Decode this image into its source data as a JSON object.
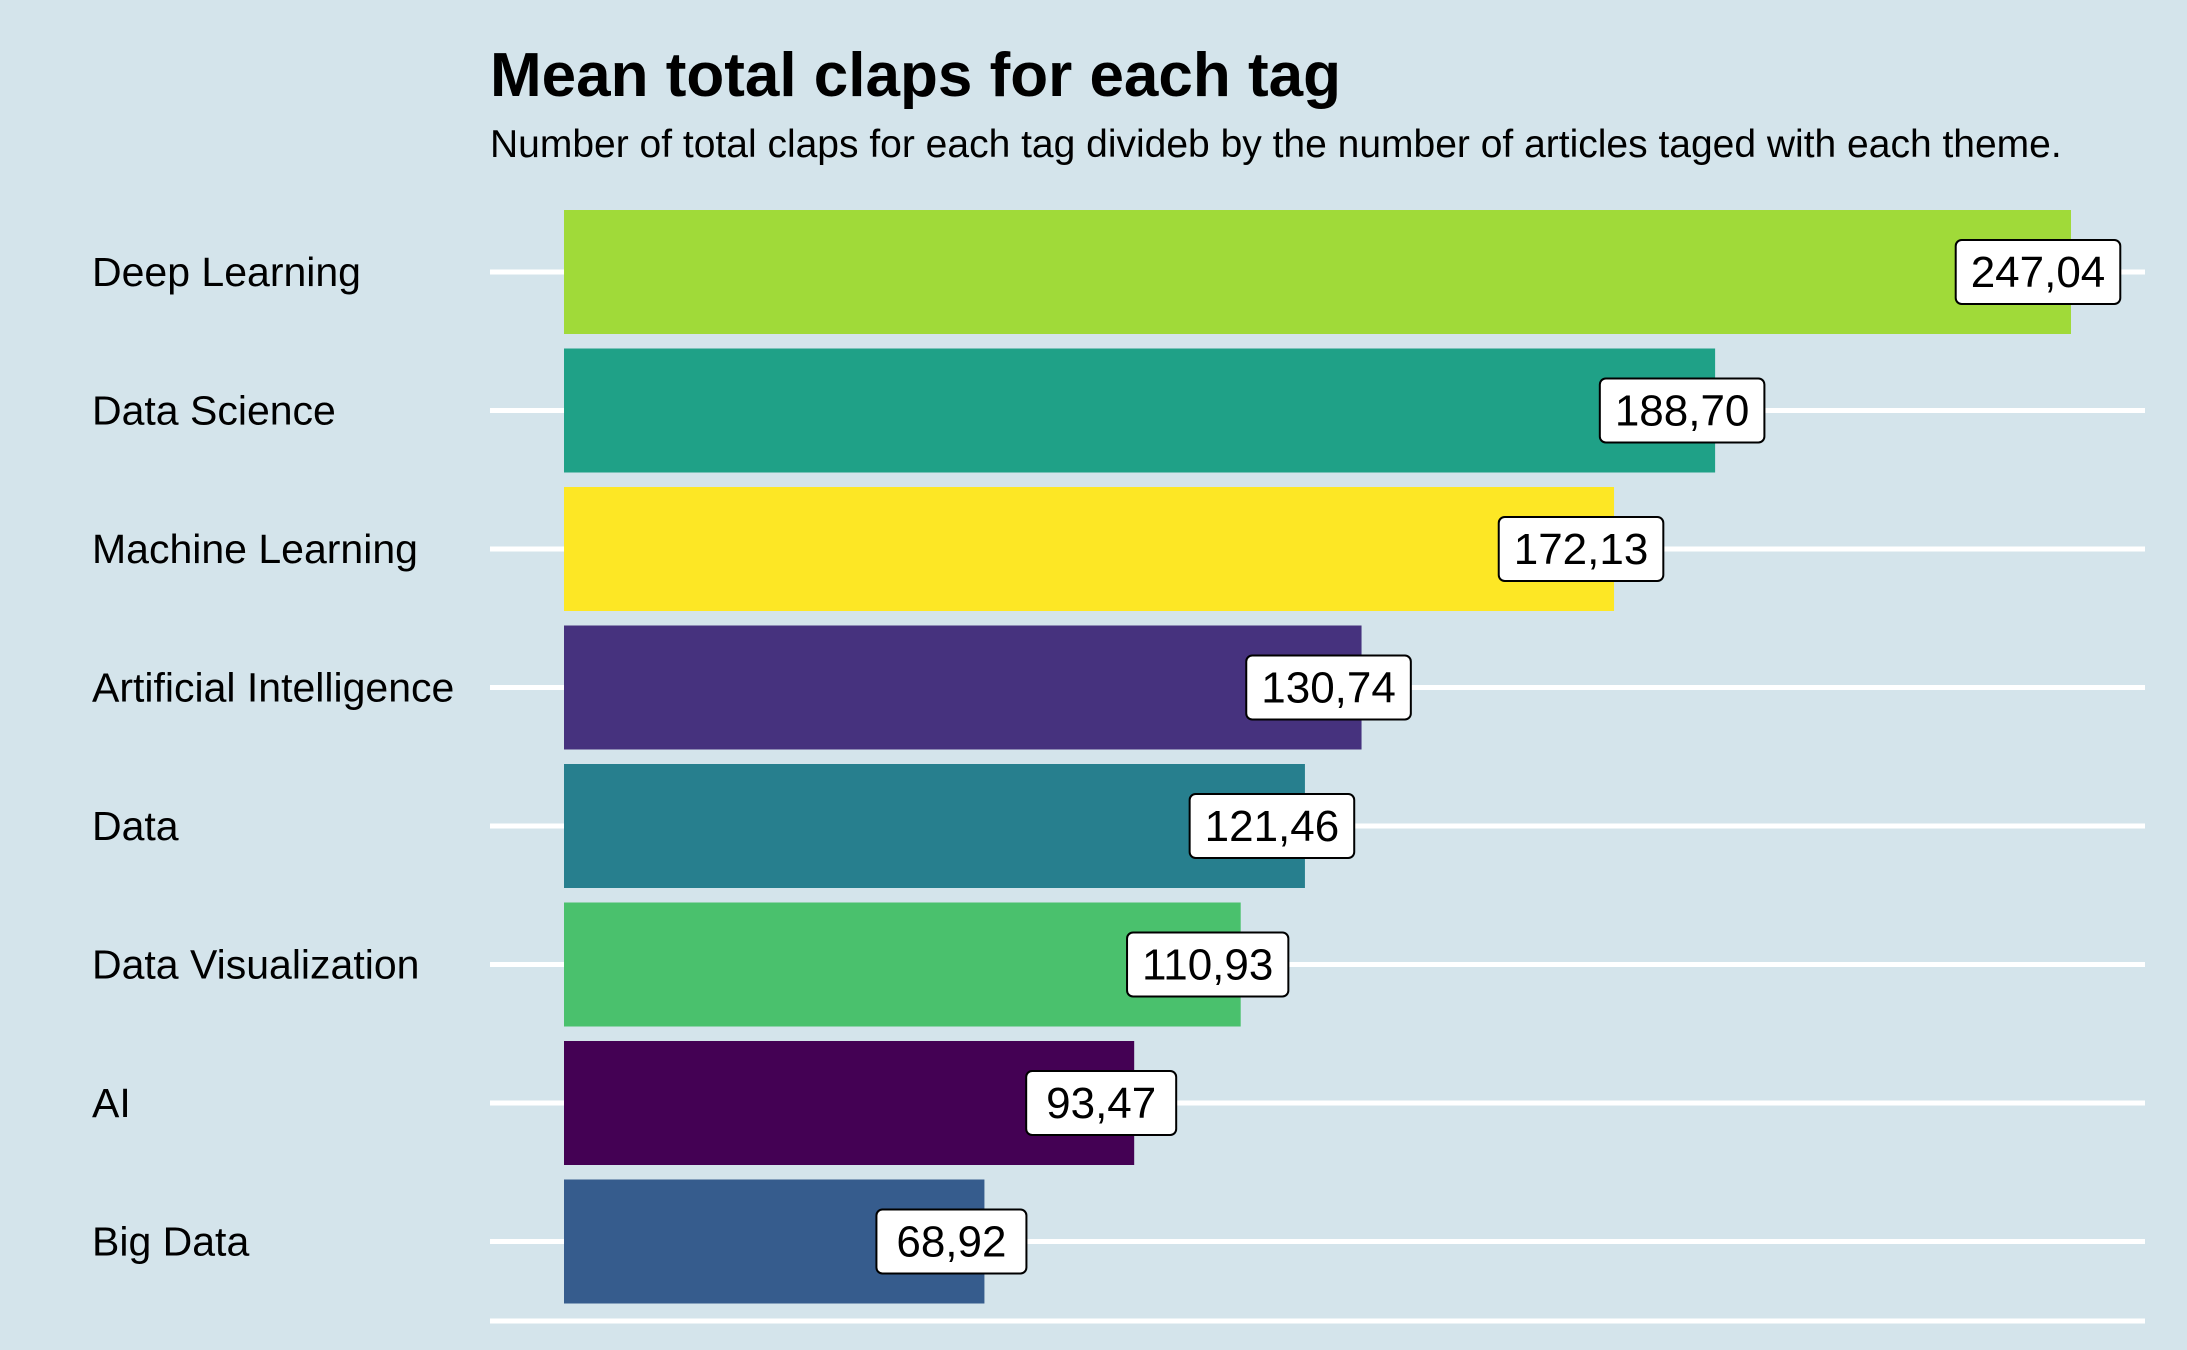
{
  "chart_data": {
    "type": "bar",
    "orientation": "horizontal",
    "title": "Mean total claps for each tag",
    "subtitle": "Number of total claps for each tag divideb by the number of articles taged with each theme.",
    "xlabel": "",
    "ylabel": "",
    "xlim": [
      0,
      262
    ],
    "grid": "major horizontal lines only",
    "legend": "none",
    "categories": [
      "Deep Learning",
      "Data Science",
      "Machine Learning",
      "Artificial Intelligence",
      "Data",
      "Data Visualization",
      "AI",
      "Big Data"
    ],
    "values": [
      247.04,
      188.7,
      172.13,
      130.74,
      121.46,
      110.93,
      93.47,
      68.92
    ],
    "value_labels": [
      "247,04",
      "188,70",
      "172,13",
      "130,74",
      "121,46",
      "110,93",
      "93,47",
      "68,92"
    ],
    "colors": [
      "#a0da39",
      "#1fa187",
      "#fde725",
      "#46327e",
      "#277f8e",
      "#4ac16d",
      "#440154",
      "#365c8d"
    ],
    "background_color": "#d4e4eb",
    "grid_color": "#ffffff"
  }
}
